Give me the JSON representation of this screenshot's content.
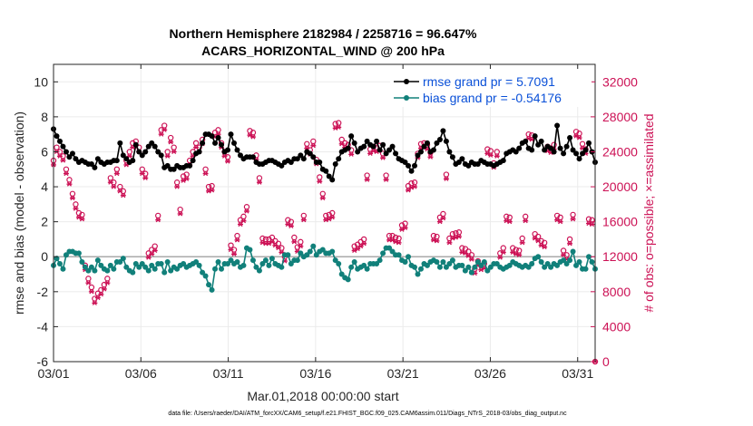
{
  "colors": {
    "rmse": "#000000",
    "bias": "#11807a",
    "obs": "#cc1155",
    "zero": "#aaaaaa",
    "grid": "#ebebeb"
  },
  "chart_data": {
    "type": "line",
    "title_line1": "Northern Hemisphere 2182984 / 2258716 = 96.647%",
    "title_line2": "ACARS_HORIZONTAL_WIND @ 200 hPa",
    "xlabel": "Mar.01,2018 00:00:00 start",
    "ylabel": "rmse and bias (model - observation)",
    "y2label": "# of obs: o=possible; ×=assimilated",
    "footnote": "data file: /Users/raeder/DAI/ATM_forcXX/CAM6_setup/f.e21.FHIST_BGC.f09_025.CAM6assim.011/Diags_NTrS_2018-03/obs_diag_output.nc",
    "xlim": [
      1,
      32
    ],
    "ylim": [
      -6,
      11
    ],
    "y2lim": [
      0,
      34000
    ],
    "xtick_values": [
      1,
      6,
      11,
      16,
      21,
      26,
      31
    ],
    "xtick_labels": [
      "03/01",
      "03/06",
      "03/11",
      "03/16",
      "03/21",
      "03/26",
      "03/31"
    ],
    "ytick_values": [
      -6,
      -4,
      -2,
      0,
      2,
      4,
      6,
      8,
      10
    ],
    "ytick_labels": [
      "-6",
      "-4",
      "-2",
      "0",
      "2",
      "4",
      "6",
      "8",
      "10"
    ],
    "y2tick_values": [
      0,
      4000,
      8000,
      12000,
      16000,
      20000,
      24000,
      28000,
      32000
    ],
    "y2tick_labels": [
      "0",
      "4000",
      "8000",
      "12000",
      "16000",
      "20000",
      "24000",
      "28000",
      "32000"
    ],
    "legend_location": "top-right",
    "series": [
      {
        "name": "rmse grand pr = 5.7091",
        "values": [
          7.3,
          6.9,
          6.6,
          6.3,
          6.0,
          5.7,
          5.9,
          5.6,
          5.4,
          5.5,
          5.4,
          5.3,
          5.3,
          5.1,
          5.6,
          5.4,
          5.3,
          5.4,
          5.4,
          5.5,
          5.5,
          6.5,
          5.8,
          5.6,
          5.4,
          5.5,
          6.4,
          6.0,
          5.8,
          6.0,
          6.3,
          6.5,
          6.3,
          6.0,
          5.8,
          5.1,
          5.2,
          5.0,
          5.0,
          5.2,
          5.1,
          5.1,
          5.2,
          5.2,
          5.5,
          5.9,
          6.0,
          6.5,
          7.0,
          7.0,
          6.9,
          6.5,
          6.8,
          6.4,
          6.0,
          6.1,
          7.0,
          6.5,
          6.1,
          5.8,
          5.6,
          5.7,
          5.7,
          5.7,
          5.4,
          5.3,
          5.3,
          5.4,
          5.5,
          5.5,
          5.4,
          5.3,
          5.2,
          5.4,
          5.5,
          5.4,
          5.6,
          5.6,
          5.8,
          5.6,
          6.0,
          5.9,
          5.7,
          5.4,
          5.4,
          5.0,
          4.9,
          4.6,
          4.4,
          5.3,
          5.6,
          6.0,
          6.1,
          6.2,
          6.9,
          6.5,
          6.0,
          6.2,
          6.3,
          6.6,
          6.4,
          6.3,
          6.6,
          6.1,
          6.4,
          5.9,
          6.1,
          6.3,
          5.9,
          5.6,
          5.5,
          5.4,
          5.2,
          4.9,
          5.2,
          5.8,
          6.0,
          6.3,
          6.5,
          6.0,
          6.1,
          6.5,
          6.7,
          7.2,
          6.6,
          6.0,
          5.7,
          5.3,
          5.4,
          5.6,
          5.3,
          5.2,
          5.4,
          5.3,
          5.3,
          5.5,
          5.4,
          5.3,
          5.3,
          5.2,
          5.3,
          5.4,
          5.5,
          5.9,
          6.0,
          6.1,
          6.0,
          6.2,
          6.5,
          6.6,
          6.2,
          6.1,
          6.9,
          6.4,
          6.6,
          6.1,
          6.3,
          6.2,
          6.0,
          7.5,
          6.2,
          5.9,
          6.3,
          6.8,
          6.1,
          5.9,
          5.6,
          5.9,
          6.1,
          6.5,
          6.0,
          5.4
        ]
      },
      {
        "name": "bias grand pr = -0.54176",
        "values": [
          -0.5,
          -0.1,
          -0.4,
          -0.7,
          0.1,
          0.3,
          0.3,
          0.2,
          0.2,
          -0.3,
          -0.6,
          -0.8,
          -0.6,
          -0.8,
          -0.2,
          -0.5,
          -0.7,
          -0.8,
          -0.5,
          -0.7,
          -0.3,
          -0.3,
          -0.1,
          -0.6,
          -0.8,
          -0.9,
          -0.4,
          -0.6,
          -0.4,
          -0.6,
          -0.8,
          -0.5,
          -0.7,
          -0.4,
          -0.4,
          -0.9,
          -0.3,
          -0.8,
          -0.6,
          -0.7,
          -0.5,
          -0.4,
          -0.6,
          -0.5,
          -0.4,
          -0.3,
          -0.5,
          -0.9,
          -1.1,
          -1.6,
          -1.9,
          -0.7,
          -0.3,
          -0.7,
          -0.4,
          -0.4,
          -0.2,
          -0.4,
          -0.3,
          -0.6,
          -0.5,
          0.5,
          0.4,
          -0.2,
          -0.6,
          -0.8,
          -0.4,
          -0.2,
          -0.5,
          -0.1,
          -0.4,
          -0.5,
          -0.6,
          0.1,
          0.1,
          -0.4,
          -0.2,
          -0.2,
          0.2,
          0.0,
          0.1,
          0.3,
          0.6,
          0.1,
          0.3,
          0.4,
          0.2,
          0.2,
          0.3,
          -0.2,
          -0.4,
          -1.0,
          -1.2,
          -1.3,
          -0.6,
          -0.3,
          -0.7,
          -0.6,
          -0.5,
          -0.7,
          -0.4,
          -0.4,
          -0.4,
          -0.2,
          0.2,
          0.5,
          0.5,
          0.3,
          0.1,
          0.1,
          -0.2,
          -0.3,
          0.0,
          -0.5,
          -0.6,
          -1.0,
          -0.7,
          -0.4,
          -0.5,
          -0.3,
          -0.2,
          -0.3,
          -0.6,
          -0.3,
          -0.6,
          -0.4,
          -0.2,
          -0.6,
          -0.5,
          -0.5,
          -0.8,
          -0.6,
          -0.9,
          -0.6,
          -0.3,
          -0.5,
          -0.3,
          -0.8,
          -0.6,
          -0.4,
          -0.4,
          -0.6,
          -0.7,
          -0.6,
          -0.5,
          -0.3,
          -0.4,
          -0.5,
          -0.6,
          -0.5,
          -0.6,
          -0.4,
          -0.1,
          0.0,
          -0.3,
          -0.6,
          -0.4,
          -0.6,
          -0.4,
          -0.5,
          -0.3,
          -0.2,
          -0.4,
          -0.2,
          0.3,
          -0.5,
          -0.3,
          -0.7,
          -0.7,
          0.0,
          -0.3,
          -0.7
        ]
      }
    ],
    "obs_possible": [
      23000,
      24500,
      24000,
      23500,
      22000,
      20800,
      19200,
      18000,
      17000,
      16800,
      11000,
      9500,
      8500,
      7200,
      7800,
      8200,
      8800,
      9500,
      21000,
      20500,
      22000,
      20000,
      19500,
      23000,
      24000,
      25000,
      25200,
      24500,
      22000,
      21500,
      12400,
      12800,
      13200,
      16700,
      26500,
      27000,
      24000,
      25600,
      24500,
      20500,
      17400,
      21200,
      21400,
      23000,
      24000,
      25000,
      24500,
      25400,
      22000,
      20000,
      20100,
      26200,
      26500,
      25000,
      24000,
      23400,
      13300,
      12800,
      14400,
      16200,
      16600,
      17700,
      26400,
      26200,
      23600,
      21000,
      14100,
      14000,
      14000,
      14200,
      13800,
      13500,
      13000,
      12000,
      16200,
      16000,
      14200,
      13100,
      13700,
      16700,
      24900,
      24200,
      25200,
      23100,
      21100,
      19200,
      16700,
      16800,
      17000,
      27200,
      27300,
      25400,
      25000,
      24800,
      24200,
      13200,
      13400,
      13700,
      14000,
      21300,
      24300,
      24600,
      24500,
      24700,
      23800,
      21300,
      14400,
      14400,
      14200,
      14100,
      15600,
      15800,
      20100,
      20400,
      20500,
      23800,
      24900,
      25000,
      24800,
      23900,
      14400,
      14300,
      16500,
      16900,
      21400,
      14100,
      14600,
      14700,
      14800,
      13000,
      12900,
      12600,
      12200,
      10600,
      11500,
      11000,
      11200,
      24300,
      24100,
      22700,
      24000,
      12400,
      13000,
      16600,
      16500,
      13000,
      12800,
      12700,
      14100,
      16600,
      26000,
      25900,
      14600,
      14300,
      13800,
      13600,
      24600,
      24400,
      24800,
      16700,
      16500,
      12700,
      12200,
      14000,
      16800,
      26300,
      26100,
      24900,
      24300,
      16300,
      16200,
      0
    ],
    "obs_assimilated": [
      22500,
      24000,
      23500,
      23000,
      21500,
      20300,
      18700,
      17500,
      16500,
      16300,
      10500,
      9000,
      8000,
      6700,
      7300,
      7700,
      8300,
      9000,
      20500,
      20000,
      21500,
      19500,
      19000,
      22500,
      23500,
      24500,
      24700,
      24000,
      21500,
      21000,
      11900,
      12300,
      12700,
      16200,
      26000,
      26500,
      23500,
      25100,
      24000,
      20000,
      16900,
      20700,
      20900,
      22500,
      23500,
      24500,
      24000,
      24900,
      21500,
      19500,
      19600,
      25700,
      26000,
      24500,
      23500,
      22900,
      12800,
      12300,
      13900,
      15700,
      16100,
      17200,
      25900,
      25700,
      23100,
      20500,
      13600,
      13500,
      13500,
      13700,
      13300,
      13000,
      12500,
      11500,
      15700,
      15500,
      13700,
      12600,
      13200,
      16200,
      24400,
      23700,
      24700,
      22600,
      20600,
      18700,
      16200,
      16300,
      16500,
      26700,
      26800,
      24900,
      24500,
      24300,
      23700,
      12700,
      12900,
      13200,
      13500,
      20800,
      23800,
      24100,
      24000,
      24200,
      23300,
      20800,
      13900,
      13900,
      13700,
      13600,
      15100,
      15300,
      19600,
      19900,
      20000,
      23300,
      24400,
      24500,
      24300,
      23400,
      13900,
      13800,
      16000,
      16400,
      20900,
      13600,
      14100,
      14200,
      14300,
      12500,
      12400,
      12100,
      11700,
      10100,
      11000,
      10500,
      10700,
      23800,
      23600,
      22200,
      23500,
      11900,
      12500,
      16100,
      16000,
      12500,
      12300,
      12200,
      13600,
      16100,
      25500,
      25400,
      14100,
      13800,
      13300,
      13100,
      24100,
      23900,
      24300,
      16200,
      16000,
      12200,
      11700,
      13500,
      16300,
      25800,
      25600,
      24400,
      23800,
      15800,
      15700,
      0
    ]
  }
}
